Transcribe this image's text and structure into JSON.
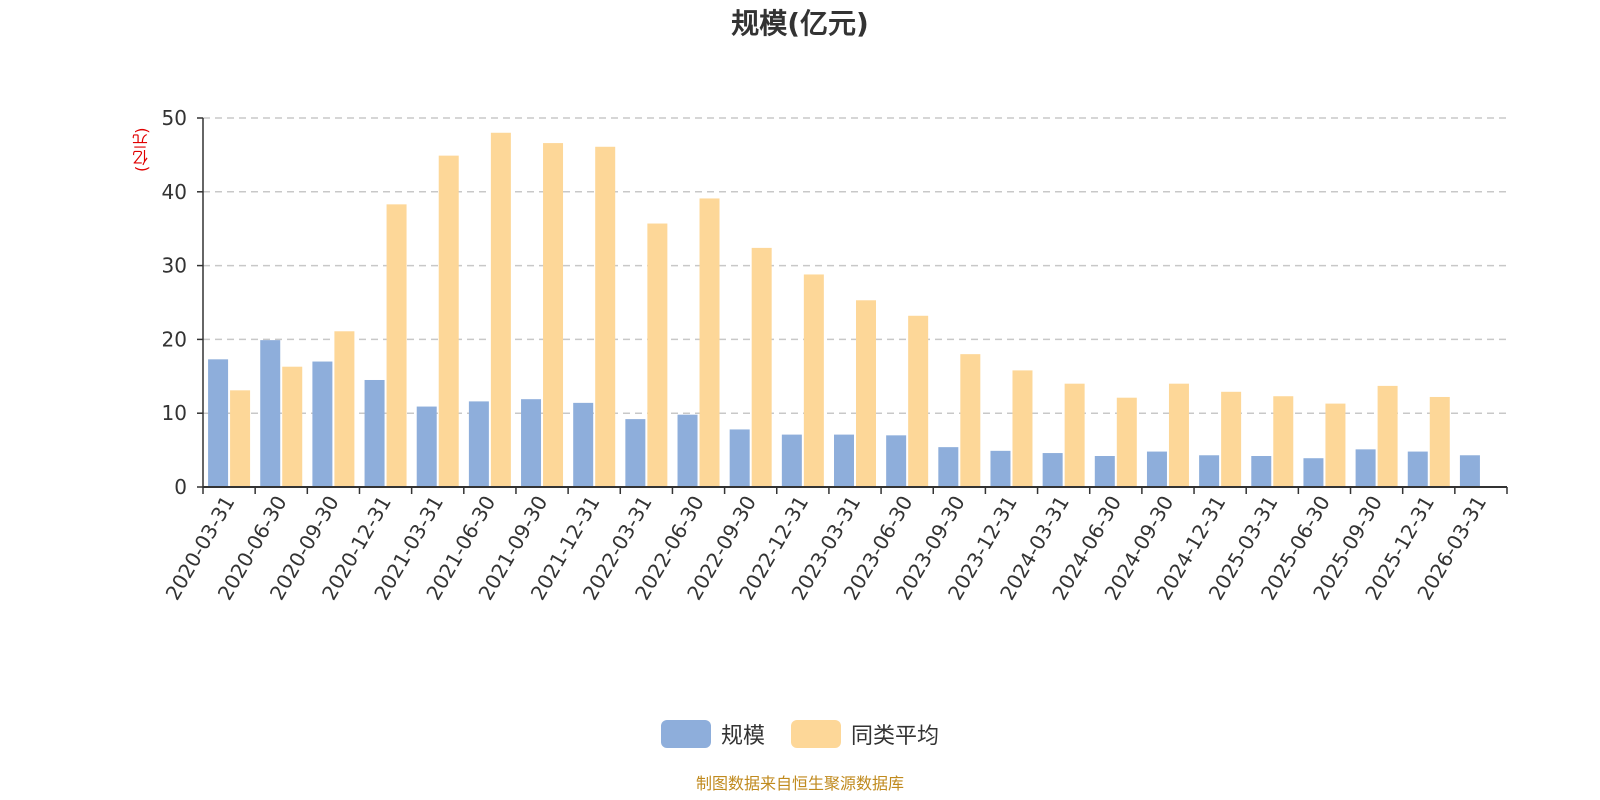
{
  "chart_data": {
    "type": "bar",
    "title": "规模(亿元)",
    "ylabel": "(亿元)",
    "ylim": [
      0,
      50
    ],
    "yticks": [
      0,
      10,
      20,
      30,
      40,
      50
    ],
    "grid": true,
    "legend_position": "bottom",
    "categories": [
      "2020-03-31",
      "2020-06-30",
      "2020-09-30",
      "2020-12-31",
      "2021-03-31",
      "2021-06-30",
      "2021-09-30",
      "2021-12-31",
      "2022-03-31",
      "2022-06-30",
      "2022-09-30",
      "2022-12-31",
      "2023-03-31",
      "2023-06-30",
      "2023-09-30",
      "2023-12-31",
      "2024-03-31",
      "2024-06-30",
      "2024-09-30",
      "2024-12-31",
      "2025-03-31",
      "2025-06-30",
      "2025-09-30",
      "2025-12-31",
      "2026-03-31"
    ],
    "series": [
      {
        "name": "规模",
        "color": "#8eaedb",
        "values": [
          17.3,
          19.9,
          17.0,
          14.5,
          10.9,
          11.6,
          11.9,
          11.4,
          9.2,
          9.8,
          7.8,
          7.1,
          7.1,
          7.0,
          5.4,
          4.9,
          4.6,
          4.2,
          4.8,
          4.3,
          4.2,
          3.9,
          5.1,
          4.8,
          4.3
        ]
      },
      {
        "name": "同类平均",
        "color": "#fdd798",
        "values": [
          13.1,
          16.3,
          21.1,
          38.3,
          44.9,
          48.0,
          46.6,
          46.1,
          35.7,
          39.1,
          32.4,
          28.8,
          25.3,
          23.2,
          18.0,
          15.8,
          14.0,
          12.1,
          14.0,
          12.9,
          12.3,
          11.3,
          13.7,
          12.2,
          null
        ]
      }
    ],
    "source": "制图数据来自恒生聚源数据库"
  }
}
